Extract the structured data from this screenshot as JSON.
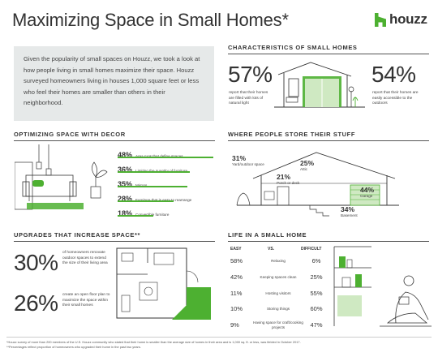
{
  "header": {
    "title": "Maximizing Space in Small Homes*",
    "logo_text": "houzz",
    "brand_green": "#4db031"
  },
  "intro": {
    "text": "Given the popularity of small spaces on Houzz, we took a look at how people living in small homes maximize their space. Houzz surveyed homeowners living in houses 1,000 square feet or less who feel their homes are smaller than others in their neighborhood."
  },
  "characteristics": {
    "title": "CHARACTERISTICS OF SMALL HOMES",
    "left_pct": "57%",
    "left_text": "report that their homes are filled with lots of natural light",
    "right_pct": "54%",
    "right_text": "report that their homes are easily accessible to the outdoors"
  },
  "decor": {
    "title": "OPTIMIZING SPACE WITH DECOR",
    "items": [
      {
        "pct": "48%",
        "label": "Area rugs that define spaces",
        "value": 48
      },
      {
        "pct": "36%",
        "label": "Limiting the quantity of furniture",
        "value": 36
      },
      {
        "pct": "35%",
        "label": "Mirrors",
        "value": 35
      },
      {
        "pct": "28%",
        "label": "Furniture that is easy to rearrange",
        "value": 28
      },
      {
        "pct": "18%",
        "label": "Convertible furniture",
        "value": 18
      }
    ]
  },
  "storage": {
    "title": "WHERE PEOPLE STORE THEIR STUFF",
    "yard_pct": "31%",
    "yard_label": "Yard/outdoor space",
    "attic_pct": "25%",
    "attic_label": "Attic",
    "porch_pct": "21%",
    "porch_label": "Porch or deck",
    "garage_pct": "44%",
    "garage_label": "Garage",
    "basement_pct": "34%",
    "basement_label": "Basement"
  },
  "upgrades": {
    "title": "UPGRADES THAT INCREASE SPACE**",
    "first_pct": "30%",
    "first_text": "of homeowners renovate outdoor spaces to extend the size of their living area",
    "second_pct": "26%",
    "second_text": "create an open floor plan to maximize the space within their small homes"
  },
  "life": {
    "title": "LIFE IN A SMALL HOME",
    "hdr_easy": "EASY",
    "hdr_vs": "VS.",
    "hdr_difficult": "DIFFICULT",
    "rows": [
      {
        "easy": "58%",
        "label": "Relaxing",
        "difficult": "6%"
      },
      {
        "easy": "42%",
        "label": "Keeping spaces clean",
        "difficult": "25%"
      },
      {
        "easy": "11%",
        "label": "Hosting visitors",
        "difficult": "55%"
      },
      {
        "easy": "10%",
        "label": "Storing things",
        "difficult": "60%"
      },
      {
        "easy": "9%",
        "label": "Having space for craft/cooking projects",
        "difficult": "47%"
      }
    ]
  },
  "footnotes": {
    "line1": "*Houzz survey of more than 200 members of the U.S. Houzz community who stated that their home is smaller than the average size of homes in their area and is 1,000 sq. ft. or less, was fielded in October 2017.",
    "line2": "**Percentages reflect proportion of homeowners who upgraded their home in the past two years."
  }
}
